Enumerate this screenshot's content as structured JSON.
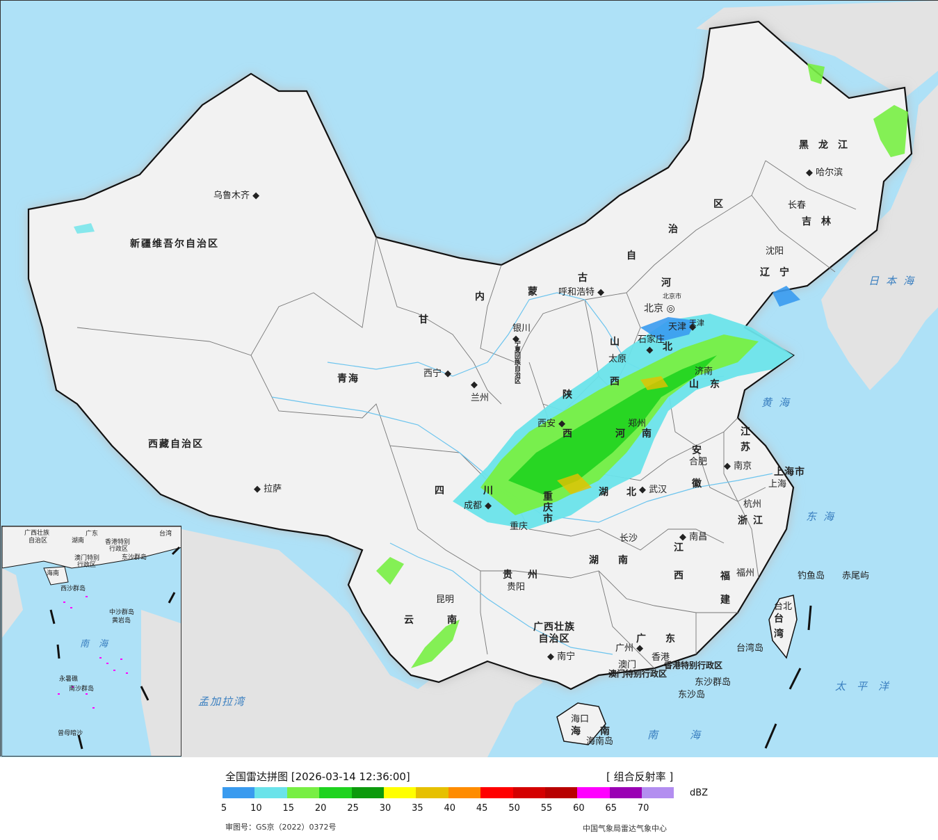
{
  "colors": {
    "sea": "#aee1f7",
    "land_china": "#f2f2f2",
    "land_foreign": "#e3e3e3",
    "border": "#111111",
    "river": "#6cc4ee"
  },
  "map": {
    "provinces": [
      "新疆维吾尔自治区",
      "西藏自治区",
      "青海",
      "甘",
      "内",
      "蒙",
      "古",
      "自",
      "治",
      "区",
      "黑龙江",
      "吉林",
      "辽宁",
      "河",
      "北",
      "山",
      "西",
      "陕",
      "西",
      "山东",
      "河",
      "南",
      "江苏",
      "安",
      "徽",
      "湖",
      "北",
      "四",
      "川",
      "重庆市",
      "贵州",
      "云",
      "南",
      "湖",
      "南",
      "江",
      "西",
      "浙江",
      "福",
      "建",
      "广西壮族自治区",
      "广",
      "东",
      "海",
      "南",
      "台",
      "湾",
      "宁夏回族自治区",
      "上海市",
      "天津"
    ],
    "cities": [
      "乌鲁木齐",
      "拉萨",
      "西宁",
      "兰州",
      "银川",
      "呼和浩特",
      "北京",
      "北京市",
      "天津",
      "石家庄",
      "太原",
      "济南",
      "郑州",
      "西安",
      "成都",
      "重庆",
      "武汉",
      "合肥",
      "南京",
      "上海",
      "杭州",
      "长沙",
      "南昌",
      "贵阳",
      "昆明",
      "南宁",
      "广州",
      "澳门",
      "香港",
      "海口",
      "福州",
      "台北",
      "哈尔滨",
      "长春",
      "沈阳"
    ],
    "seas": [
      "日本海",
      "黄海",
      "东海",
      "太平洋",
      "南海",
      "孟加拉湾"
    ],
    "islands": [
      "钓鱼岛",
      "赤尾屿",
      "台湾岛",
      "东沙群岛",
      "东沙岛",
      "海南岛"
    ],
    "special": [
      "香港特别行政区",
      "澳门特别行政区"
    ]
  },
  "inset": {
    "labels": [
      "广西壮族",
      "自治区",
      "广东",
      "湖南",
      "台湾",
      "香港特别",
      "行政区",
      "澳门特别",
      "行政区",
      "东沙群岛",
      "海南",
      "中沙群岛",
      "黄岩岛",
      "西沙群岛",
      "南海",
      "永暑礁",
      "南沙群岛",
      "曾母暗沙"
    ]
  },
  "footer": {
    "title": "全国雷达拼图 [2026-03-14 12:36:00]",
    "product": "[ 组合反射率 ]",
    "unit": "dBZ",
    "approval": "审图号：GS京（2022）0372号",
    "source": "中国气象局雷达气象中心",
    "scale_colors": [
      "#3a9bef",
      "#6ae3ea",
      "#78ef44",
      "#1fd31f",
      "#0c9a0c",
      "#ffff00",
      "#e6c000",
      "#ff8c00",
      "#ff0000",
      "#d40000",
      "#b80000",
      "#ff00ff",
      "#9a00b4",
      "#b38ef0"
    ],
    "scale_labels": [
      "5",
      "10",
      "15",
      "20",
      "25",
      "30",
      "35",
      "40",
      "45",
      "50",
      "55",
      "60",
      "65",
      "70"
    ]
  }
}
